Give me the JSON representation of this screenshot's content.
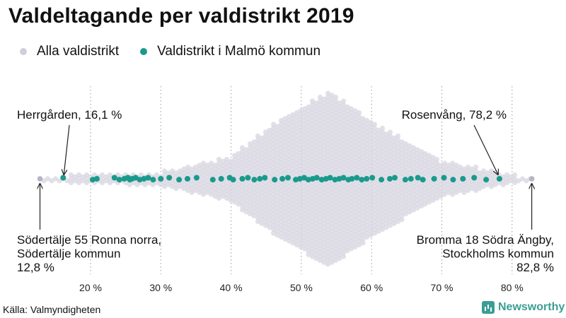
{
  "title": "Valdeltagande per valdistrikt 2019",
  "legend": {
    "all": "Alla valdistrikt",
    "malmo": "Valdistrikt i Malmö kommun"
  },
  "colors": {
    "all": "#d7d5e0",
    "malmo": "#1a9a8c",
    "accent": "#3a9e94"
  },
  "source": "Källa: Valmyndigheten",
  "brand": "Newsworthy",
  "chart_data": {
    "type": "scatter",
    "subtype": "beeswarm",
    "xlim": [
      12,
      84
    ],
    "xticks": [
      20,
      30,
      40,
      50,
      60,
      70,
      80
    ],
    "xtick_labels": [
      "20 %",
      "30 %",
      "40 %",
      "50 %",
      "60 %",
      "70 %",
      "80 %"
    ],
    "grid": true,
    "series": [
      {
        "name": "Alla valdistrikt",
        "min": 12.8,
        "max": 82.8,
        "peak": 54
      },
      {
        "name": "Valdistrikt i Malmö kommun",
        "values": [
          16.1,
          20.3,
          20.9,
          23.4,
          24.1,
          24.8,
          25.3,
          25.6,
          25.9,
          26.4,
          27.0,
          27.6,
          28.2,
          28.9,
          30.0,
          31.2,
          32.6,
          33.8,
          35.1,
          37.4,
          38.6,
          39.8,
          40.3,
          41.6,
          42.4,
          43.3,
          44.1,
          44.8,
          46.2,
          47.3,
          48.1,
          49.2,
          49.8,
          50.4,
          51.0,
          51.6,
          52.2,
          52.9,
          53.5,
          54.1,
          54.8,
          55.4,
          56.0,
          56.7,
          57.2,
          57.9,
          58.6,
          59.3,
          60.1,
          61.4,
          62.6,
          63.3,
          64.8,
          65.6,
          66.6,
          67.3,
          68.9,
          70.3,
          71.6,
          73.0,
          74.6,
          76.3,
          78.2
        ]
      }
    ],
    "annotations": [
      {
        "id": "herrgarden",
        "label": "Herrgården, 16,1 %",
        "value": 16.1
      },
      {
        "id": "rosenvang",
        "label": "Rosenvång, 78,2 %",
        "value": 78.2
      },
      {
        "id": "sodertalje",
        "lines": [
          "Södertälje 55 Ronna norra,",
          "Södertälje kommun",
          "12,8 %"
        ],
        "value": 12.8
      },
      {
        "id": "bromma",
        "lines": [
          "Bromma 18 Södra Ängby,",
          "Stockholms kommun",
          "82,8 %"
        ],
        "value": 82.8
      }
    ]
  }
}
